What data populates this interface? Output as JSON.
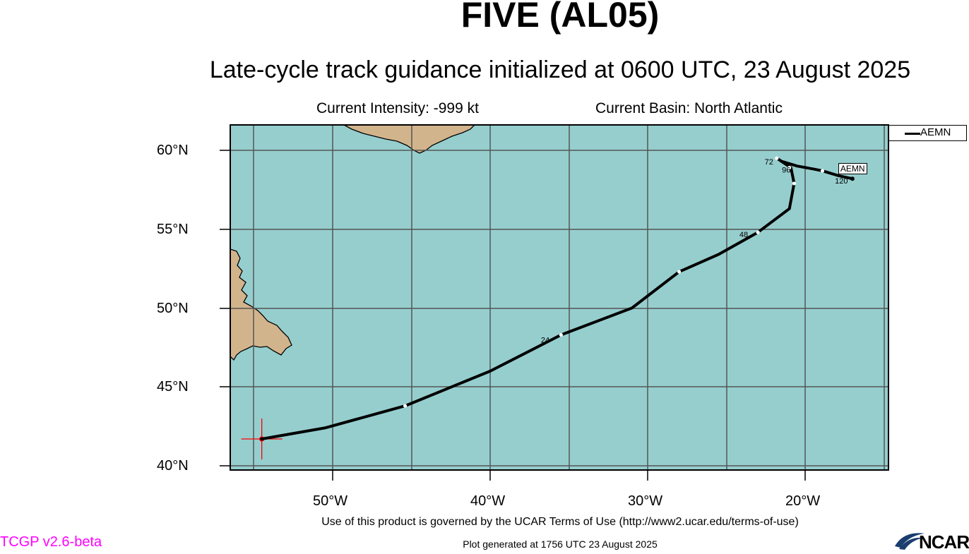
{
  "header": {
    "title": "FIVE (AL05)",
    "subtitle": "Late-cycle track guidance initialized at 0600 UTC, 23 August 2025",
    "intensity": "Current Intensity: -999 kt",
    "basin": "Current Basin: North Atlantic"
  },
  "axes": {
    "lat_labels": [
      "60°N",
      "55°N",
      "50°N",
      "45°N",
      "40°N"
    ],
    "lon_labels": [
      "50°W",
      "40°W",
      "30°W",
      "20°W"
    ]
  },
  "legend": {
    "label": "AEMN"
  },
  "track": {
    "model": "AEMN",
    "end_label": "AEMN",
    "colors": {
      "track": "#000000",
      "ocean": "#96cece",
      "land": "#d2b48c",
      "marker": "#ff0000"
    },
    "initial_position": {
      "lon": -54.5,
      "lat": 41.7
    },
    "points": [
      {
        "lon": -54.5,
        "lat": 41.7
      },
      {
        "lon": -50.5,
        "lat": 42.4
      },
      {
        "lon": -45.4,
        "lat": 43.8
      },
      {
        "lon": -40.0,
        "lat": 46.0
      },
      {
        "lon": -35.5,
        "lat": 48.3
      },
      {
        "lon": -31.0,
        "lat": 50.0
      },
      {
        "lon": -28.0,
        "lat": 52.3
      },
      {
        "lon": -25.5,
        "lat": 53.4
      },
      {
        "lon": -23.0,
        "lat": 54.8
      },
      {
        "lon": -21.0,
        "lat": 56.3
      },
      {
        "lon": -20.7,
        "lat": 57.9
      },
      {
        "lon": -20.9,
        "lat": 58.9
      },
      {
        "lon": -21.8,
        "lat": 59.5
      },
      {
        "lon": -21.5,
        "lat": 59.3
      },
      {
        "lon": -20.5,
        "lat": 59.0
      },
      {
        "lon": -19.4,
        "lat": 58.8
      },
      {
        "lon": -18.9,
        "lat": 58.7
      },
      {
        "lon": -17.9,
        "lat": 58.4
      },
      {
        "lon": -17.0,
        "lat": 58.2
      }
    ],
    "dot_positions": [
      {
        "lon": -45.4,
        "lat": 43.8
      },
      {
        "lon": -35.5,
        "lat": 48.3
      },
      {
        "lon": -28.0,
        "lat": 52.3
      },
      {
        "lon": -23.0,
        "lat": 54.8
      },
      {
        "lon": -20.7,
        "lat": 57.9
      },
      {
        "lon": -21.0,
        "lat": 58.9
      },
      {
        "lon": -18.9,
        "lat": 58.7
      },
      {
        "lon": -21.8,
        "lat": 59.5
      }
    ],
    "hour_labels": [
      {
        "text": "24",
        "lon": -36.5,
        "lat": 47.8
      },
      {
        "text": "48",
        "lon": -23.9,
        "lat": 54.5
      },
      {
        "text": "72",
        "lon": -22.3,
        "lat": 59.1
      },
      {
        "text": "96",
        "lon": -21.2,
        "lat": 58.6
      },
      {
        "text": "120",
        "lon": -17.7,
        "lat": 57.9
      }
    ]
  },
  "footer": {
    "terms": "Use of this product is governed by the UCAR Terms of Use (http://www2.ucar.edu/terms-of-use)",
    "generated": "Plot generated at 1756 UTC   23 August 2025",
    "version": "TCGP v2.6-beta",
    "logo_text": "NCAR"
  }
}
